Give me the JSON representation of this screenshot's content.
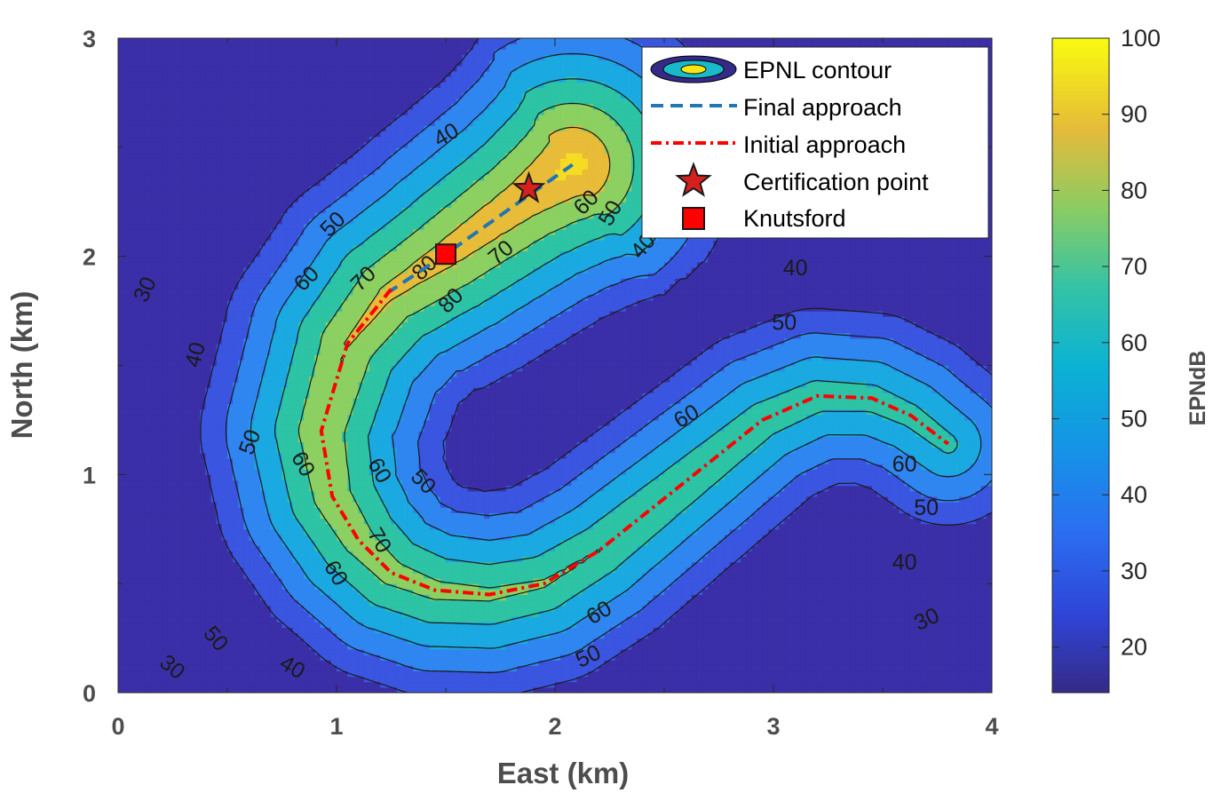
{
  "chart_data": {
    "type": "contour",
    "xlabel": "East (km)",
    "ylabel": "North (km)",
    "xlim": [
      0,
      4
    ],
    "ylim": [
      0,
      3
    ],
    "xticks": [
      "0",
      "1",
      "2",
      "3",
      "4"
    ],
    "yticks": [
      "0",
      "1",
      "2",
      "3"
    ],
    "grid": false,
    "colorbar": {
      "label": "EPNdB",
      "range": [
        14,
        100
      ],
      "ticks": [
        "20",
        "30",
        "40",
        "50",
        "60",
        "70",
        "80",
        "90",
        "100"
      ],
      "colormap": "parula"
    },
    "contour_levels": [
      30,
      40,
      50,
      60,
      70,
      80
    ],
    "contour_labels": [
      "30",
      "40",
      "50",
      "60",
      "70",
      "80"
    ],
    "legend": {
      "location": "top-right",
      "entries": [
        {
          "label": "EPNL contour",
          "symbol": "contour-ellipse"
        },
        {
          "label": "Final approach",
          "symbol": "dashed-line",
          "color": "#1f77b4"
        },
        {
          "label": "Initial approach",
          "symbol": "dash-dot-line",
          "color": "#ff0000"
        },
        {
          "label": "Certification point",
          "symbol": "star",
          "color": "#d62020"
        },
        {
          "label": "Knutsford",
          "symbol": "square",
          "color": "#ff0000"
        }
      ]
    },
    "series": [
      {
        "name": "Final approach",
        "style": "dashed",
        "color": "#1f77b4",
        "x": [
          1.23,
          1.5,
          1.88,
          2.08
        ],
        "y": [
          1.83,
          2.01,
          2.28,
          2.42
        ]
      },
      {
        "name": "Initial approach",
        "style": "dash-dot",
        "color": "#ff0000",
        "x": [
          1.25,
          1.05,
          0.93,
          0.98,
          1.1,
          1.25,
          1.45,
          1.7,
          1.95,
          2.2,
          2.45,
          2.7,
          2.95,
          3.2,
          3.45,
          3.63,
          3.8
        ],
        "y": [
          1.85,
          1.6,
          1.2,
          0.9,
          0.7,
          0.55,
          0.47,
          0.45,
          0.5,
          0.65,
          0.85,
          1.05,
          1.25,
          1.36,
          1.35,
          1.27,
          1.14
        ]
      }
    ],
    "points": [
      {
        "name": "Certification point",
        "marker": "star",
        "x": 1.88,
        "y": 2.31
      },
      {
        "name": "Knutsford",
        "marker": "square",
        "x": 1.5,
        "y": 2.01
      }
    ],
    "colors": {
      "level_below_30": "#3b2fa8",
      "level_30": "#3a55e0",
      "level_40": "#2f86f0",
      "level_50": "#1aa9e0",
      "level_60": "#2dc3a5",
      "level_70": "#8bd060",
      "level_80": "#e8bb38",
      "background": "#3b2fa8"
    }
  }
}
